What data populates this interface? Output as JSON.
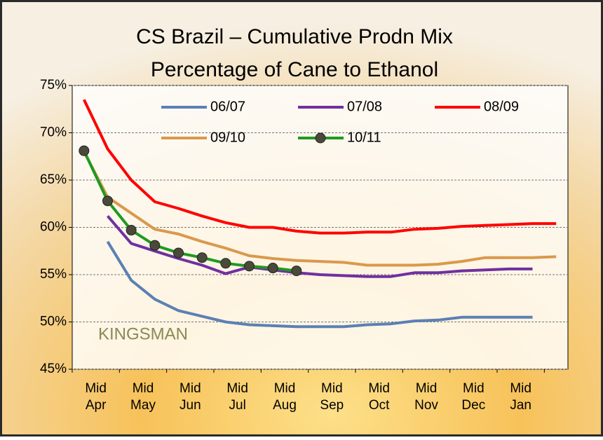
{
  "chart_data": {
    "type": "line",
    "title": "CS Brazil – Cumulative Prodn Mix",
    "subtitle": "Percentage of Cane to Ethanol",
    "annotations": [
      "KINGSMAN"
    ],
    "categories": [
      "Mid Apr",
      null,
      "Mid May",
      null,
      "Mid Jun",
      null,
      "Mid Jul",
      null,
      "Mid Aug",
      null,
      "Mid Sep",
      null,
      "Mid Oct",
      null,
      "Mid Nov",
      null,
      "Mid Dec",
      null,
      "Mid Jan",
      null,
      null
    ],
    "series": [
      {
        "name": "06/07",
        "color": "#5b80b4",
        "values": [
          null,
          58.5,
          54.4,
          52.4,
          51.2,
          50.6,
          50.0,
          49.7,
          49.6,
          49.5,
          49.5,
          49.5,
          49.7,
          49.8,
          50.1,
          50.2,
          50.5,
          50.5,
          50.5,
          50.5,
          null
        ]
      },
      {
        "name": "07/08",
        "color": "#7030a0",
        "values": [
          null,
          61.2,
          58.3,
          57.5,
          56.7,
          56.0,
          55.1,
          55.8,
          55.5,
          55.2,
          55.0,
          54.9,
          54.8,
          54.8,
          55.2,
          55.2,
          55.4,
          55.5,
          55.6,
          55.6,
          null
        ]
      },
      {
        "name": "08/09",
        "color": "#ff0000",
        "values": [
          73.5,
          68.3,
          65.0,
          62.7,
          62.0,
          61.2,
          60.5,
          60.0,
          60.0,
          59.6,
          59.4,
          59.4,
          59.5,
          59.5,
          59.8,
          59.9,
          60.1,
          60.2,
          60.3,
          60.4,
          60.4
        ]
      },
      {
        "name": "09/10",
        "color": "#d9994c",
        "values": [
          68.0,
          63.2,
          61.5,
          59.8,
          59.3,
          58.5,
          57.8,
          57.0,
          56.7,
          56.5,
          56.4,
          56.3,
          56.0,
          56.0,
          56.0,
          56.1,
          56.4,
          56.8,
          56.8,
          56.8,
          56.9
        ]
      },
      {
        "name": "10/11",
        "color": "#1f9a1f",
        "marker": true,
        "values": [
          68.1,
          62.8,
          59.7,
          58.1,
          57.3,
          56.8,
          56.2,
          55.9,
          55.7,
          55.4,
          null,
          null,
          null,
          null,
          null,
          null,
          null,
          null,
          null,
          null,
          null
        ]
      }
    ],
    "ylim": [
      45,
      75
    ],
    "yticks": [
      {
        "value": 45,
        "label": "45%"
      },
      {
        "value": 50,
        "label": "50%"
      },
      {
        "value": 55,
        "label": "55%"
      },
      {
        "value": 60,
        "label": "60%"
      },
      {
        "value": 65,
        "label": "65%"
      },
      {
        "value": 70,
        "label": "70%"
      },
      {
        "value": 75,
        "label": "75%"
      }
    ],
    "grid": true,
    "legend": "top"
  }
}
